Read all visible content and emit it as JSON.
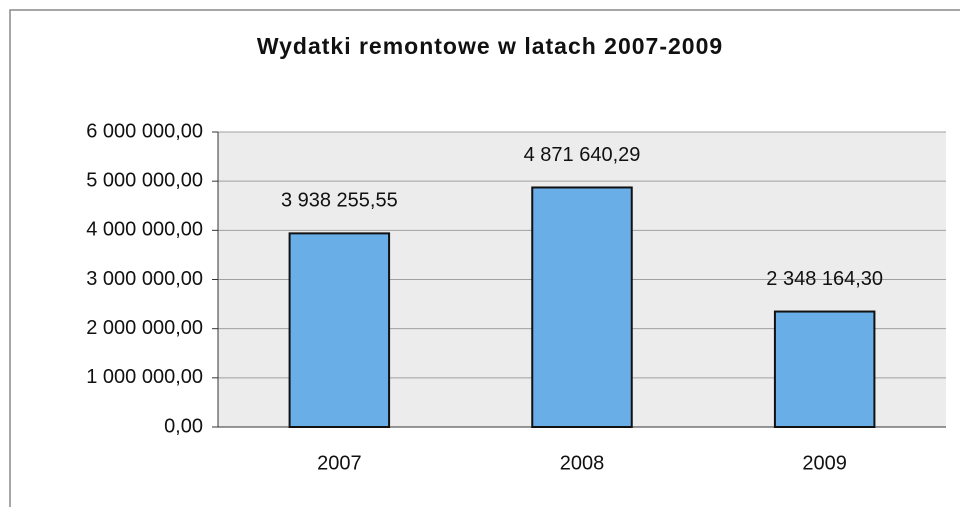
{
  "chart_data": {
    "type": "bar",
    "title": "Wydatki remontowe w latach 2007-2009",
    "categories": [
      "2007",
      "2008",
      "2009"
    ],
    "values": [
      3938255.55,
      4871640.29,
      2348164.3
    ],
    "value_labels": [
      "3 938 255,55",
      "4 871 640,29",
      "2 348 164,30"
    ],
    "color": "#6aaee8",
    "ylim": [
      0,
      6000000
    ],
    "yticks": [
      {
        "value": 0,
        "label": "0,00"
      },
      {
        "value": 1000000,
        "label": "1 000 000,00"
      },
      {
        "value": 2000000,
        "label": "2 000 000,00"
      },
      {
        "value": 3000000,
        "label": "3 000 000,00"
      },
      {
        "value": 4000000,
        "label": "4 000 000,00"
      },
      {
        "value": 5000000,
        "label": "5 000 000,00"
      },
      {
        "value": 6000000,
        "label": "6 000 000,00"
      }
    ],
    "grid": true
  }
}
